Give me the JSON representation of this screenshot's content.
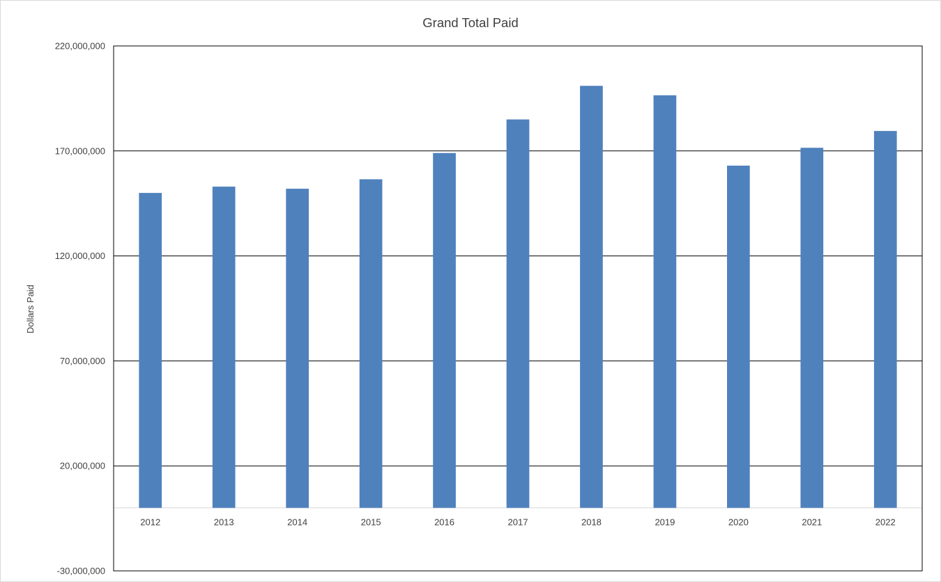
{
  "chart_data": {
    "type": "bar",
    "title": "Grand Total Paid",
    "xlabel": "",
    "ylabel": "Dollars Paid",
    "categories": [
      "2012",
      "2013",
      "2014",
      "2015",
      "2016",
      "2017",
      "2018",
      "2019",
      "2020",
      "2021",
      "2022"
    ],
    "series": [
      {
        "values": [
          150000000,
          153000000,
          152000000,
          156500000,
          169000000,
          185000000,
          201000000,
          196500000,
          163000000,
          171500000,
          179500000
        ],
        "color": "#4f81bd"
      }
    ],
    "ylim": [
      -30000000,
      220000000
    ],
    "yticks": [
      220000000,
      170000000,
      120000000,
      70000000,
      20000000,
      -30000000
    ],
    "ytick_labels": [
      "220,000,000",
      "170,000,000",
      "120,000,000",
      "70,000,000",
      "20,000,000",
      "-30,000,000"
    ],
    "grid": true,
    "legend": "none"
  }
}
